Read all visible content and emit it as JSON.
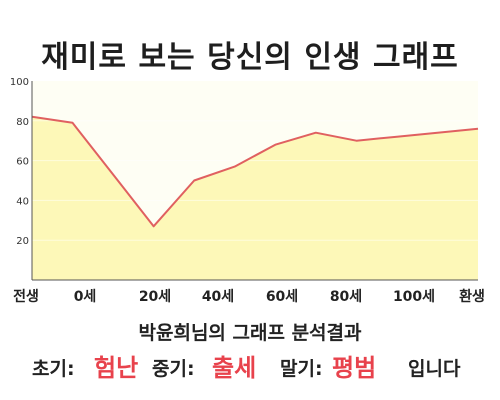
{
  "title": "재미로 보는 당신의 인생 그래프",
  "subtitle": "박윤희님의 그래프 분석결과",
  "summary": {
    "early_label": "초기:",
    "early_value": "험난",
    "mid_label": "중기:",
    "mid_value": "출세",
    "late_label": "말기:",
    "late_value": "평범",
    "ending": "입니다"
  },
  "colors": {
    "line": "#e06060",
    "fill": "#fdf8b8",
    "plot_bg": "#fefef4",
    "accent": "#e8424c"
  },
  "chart_data": {
    "type": "area",
    "title": "재미로 보는 당신의 인생 그래프",
    "xlabel": "",
    "ylabel": "",
    "ylim": [
      0,
      100
    ],
    "yticks": [
      20,
      40,
      60,
      80,
      100
    ],
    "grid": false,
    "xtick_labels": [
      "전생",
      "0세",
      "20세",
      "40세",
      "60세",
      "80세",
      "100세",
      "환생"
    ],
    "series": [
      {
        "values": [
          82,
          79,
          53,
          27,
          50,
          57,
          68,
          74,
          70,
          72,
          74,
          76
        ]
      }
    ]
  }
}
